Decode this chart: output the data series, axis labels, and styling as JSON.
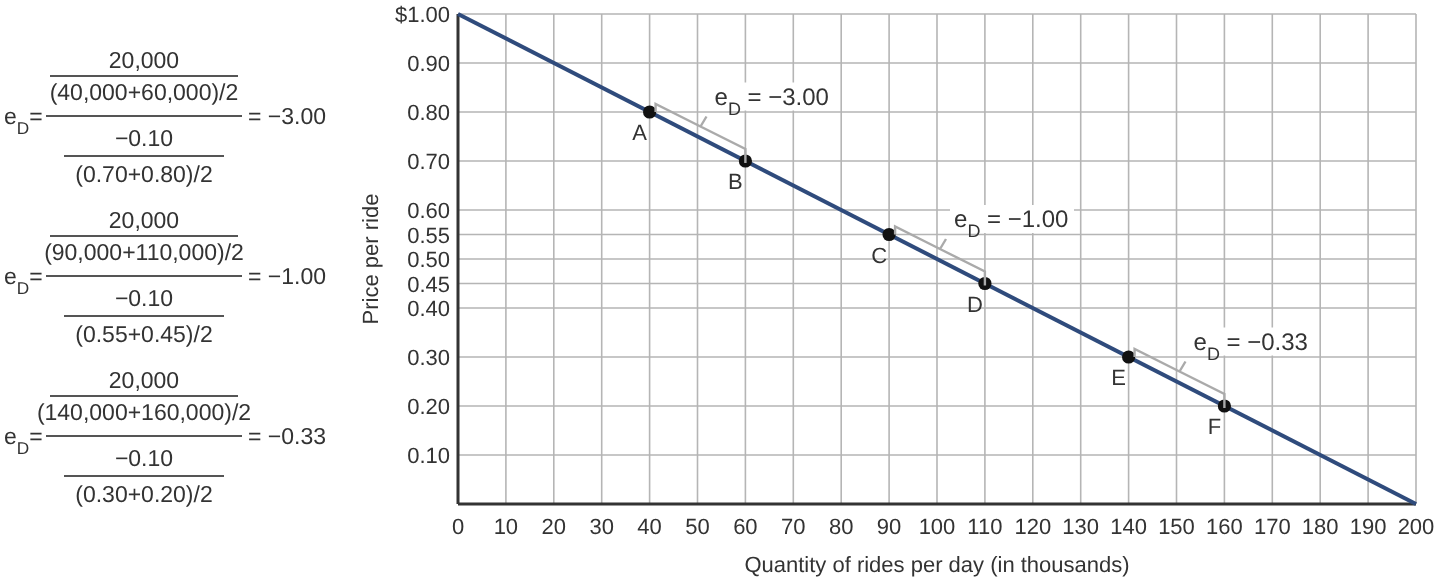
{
  "chart_data": {
    "type": "line",
    "xlabel": "Quantity of rides per day (in thousands)",
    "ylabel": "Price per ride",
    "series": [
      {
        "color": "#2f4b7c",
        "x": [
          0,
          200
        ],
        "values": [
          1,
          0
        ],
        "marker": "none"
      },
      {
        "type": "scatter",
        "color": "#111111",
        "x": [
          40,
          60,
          90,
          110,
          140,
          160
        ],
        "values": [
          0.8,
          0.7,
          0.55,
          0.45,
          0.3,
          0.2
        ],
        "value_labels": [
          "A",
          "B",
          "C",
          "D",
          "E",
          "F"
        ],
        "marker": "circle"
      }
    ],
    "xlim": [
      0,
      200
    ],
    "xticks": [
      0,
      10,
      20,
      30,
      40,
      50,
      60,
      70,
      80,
      90,
      100,
      110,
      120,
      130,
      140,
      150,
      160,
      170,
      180,
      190,
      200
    ],
    "ylim": [
      0,
      1
    ],
    "yticks": [
      {
        "value": 0.1,
        "label": "0.10"
      },
      {
        "value": 0.2,
        "label": "0.20"
      },
      {
        "value": 0.3,
        "label": "0.30"
      },
      {
        "value": 0.4,
        "label": "0.40"
      },
      {
        "value": 0.45,
        "label": "0.45"
      },
      {
        "value": 0.5,
        "label": "0.50"
      },
      {
        "value": 0.55,
        "label": "0.55"
      },
      {
        "value": 0.6,
        "label": "0.60"
      },
      {
        "value": 0.7,
        "label": "0.70"
      },
      {
        "value": 0.8,
        "label": "0.80"
      },
      {
        "value": 0.9,
        "label": "0.90"
      },
      {
        "value": 1,
        "label": "$1.00"
      }
    ],
    "grid": true,
    "annotations": [
      {
        "text": "e$_{D}$ = −3.00",
        "x": 50,
        "y": 0.75
      },
      {
        "text": "e$_{D}$ = −1.00",
        "x": 100,
        "y": 0.5
      },
      {
        "text": "e$_{D}$ = −0.33",
        "x": 150,
        "y": 0.25
      },
      "e$_{D}$=",
      "20,000",
      "(40,000+60,000)/2",
      "−0.10",
      "(0.70+0.80)/2",
      "= −3.00",
      "e$_{D}$=",
      "20,000",
      "(90,000+110,000)/2",
      "−0.10",
      "(0.55+0.45)/2",
      "= −1.00",
      "e$_{D}$=",
      "20,000",
      "(140,000+160,000)/2",
      "−0.10",
      "(0.30+0.20)/2",
      "= −0.33"
    ]
  }
}
